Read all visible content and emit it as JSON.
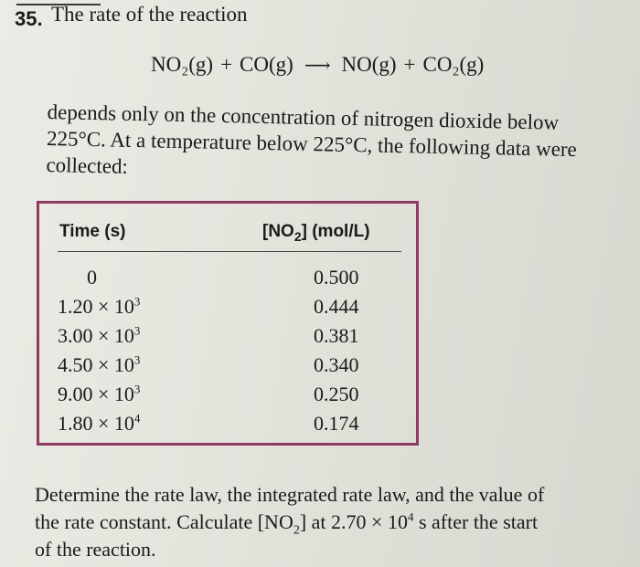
{
  "problem": {
    "number": "35.",
    "intro": "The rate of the reaction"
  },
  "equation": {
    "reactant1": "NO₂(g)",
    "plus1": "+",
    "reactant2": "CO(g)",
    "arrow": "⟶",
    "product1": "NO(g)",
    "plus2": "+",
    "product2": "CO₂(g)"
  },
  "description": {
    "line1": "depends only on the concentration of nitrogen dioxide below",
    "line2": "225°C. At a temperature below 225°C, the following data were",
    "line3": "collected:"
  },
  "table": {
    "headers": {
      "time_label": "Time (s)",
      "conc_prefix": "[NO",
      "conc_sub": "2",
      "conc_suffix": "] (mol/L)"
    },
    "rows": [
      {
        "mantissa": "0",
        "exponent": "",
        "conc": "0.500"
      },
      {
        "mantissa": "1.20 × 10",
        "exponent": "3",
        "conc": "0.444"
      },
      {
        "mantissa": "3.00 × 10",
        "exponent": "3",
        "conc": "0.381"
      },
      {
        "mantissa": "4.50 × 10",
        "exponent": "3",
        "conc": "0.340"
      },
      {
        "mantissa": "9.00 × 10",
        "exponent": "3",
        "conc": "0.250"
      },
      {
        "mantissa": "1.80 × 10",
        "exponent": "4",
        "conc": "0.174"
      }
    ]
  },
  "question": {
    "line1": "Determine the rate law, the integrated rate law, and the value of",
    "line2_pre": "the rate constant. Calculate [NO",
    "line2_sub": "2",
    "line2_mid": "] at 2.70 × 10",
    "line2_sup": "4",
    "line2_post": " s after the start",
    "line3": "of the reaction."
  }
}
